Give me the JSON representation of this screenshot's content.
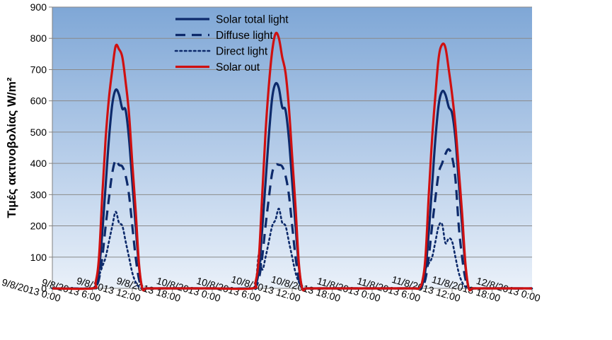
{
  "chart_data": {
    "type": "line",
    "title": "",
    "xlabel": "",
    "ylabel": "Τιμές ακτινοβολίας W/m²",
    "ylim": [
      0,
      900
    ],
    "yticks": [
      0,
      100,
      200,
      300,
      400,
      500,
      600,
      700,
      800,
      900
    ],
    "xlim": [
      0,
      72
    ],
    "xtick_labels": [
      "9/8/2013 0:00",
      "9/8/2013 6:00",
      "9/8/2013 12:00",
      "9/8/2013 18:00",
      "10/8/2013 0:00",
      "10/8/2013 6:00",
      "10/8/2013 12:00",
      "10/8/2013 18:00",
      "11/8/2013 0:00",
      "11/8/2013 6:00",
      "11/8/2013 12:00",
      "11/8/2013 18:00",
      "12/8/2013 0:00"
    ],
    "x_hours_since_9_8_2013_0000": [
      0,
      6,
      6.5,
      7,
      7.5,
      8,
      8.5,
      9,
      9.5,
      10,
      10.5,
      11,
      11.5,
      12,
      12.5,
      13,
      13.5,
      14,
      14.5,
      15,
      15.5,
      16,
      16.5,
      17,
      17.5,
      18,
      24,
      30,
      30.5,
      31,
      31.5,
      32,
      32.5,
      33,
      33.5,
      34,
      34.5,
      35,
      35.5,
      36,
      36.5,
      37,
      37.5,
      38,
      38.5,
      39,
      39.5,
      40,
      40.5,
      41,
      41.5,
      42,
      48,
      54,
      54.5,
      55,
      55.5,
      56,
      56.5,
      57,
      57.5,
      58,
      58.5,
      59,
      59.5,
      60,
      60.5,
      61,
      61.5,
      62,
      62.5,
      63,
      63.5,
      64,
      64.5,
      65,
      65.5,
      66,
      72
    ],
    "grid": true,
    "legend_position": "top-center",
    "background": "gradient blue",
    "series": [
      {
        "name": "Solar total light",
        "color": "#0d2a6b",
        "style": "solid",
        "values": [
          0,
          0,
          10,
          60,
          180,
          330,
          480,
          590,
          635,
          620,
          575,
          570,
          480,
          340,
          200,
          70,
          0,
          0,
          0,
          0,
          0,
          0,
          0,
          0,
          0,
          0,
          0,
          0,
          10,
          60,
          190,
          340,
          490,
          610,
          655,
          640,
          580,
          570,
          480,
          340,
          200,
          70,
          0,
          0,
          0,
          0,
          0,
          0,
          0,
          0,
          0,
          0,
          0,
          0,
          0,
          0,
          10,
          60,
          180,
          330,
          480,
          590,
          630,
          620,
          580,
          560,
          480,
          340,
          200,
          70,
          0,
          0,
          0,
          0,
          0,
          0,
          0,
          0,
          0
        ]
      },
      {
        "name": "Diffuse light",
        "color": "#0d2a6b",
        "style": "dashed",
        "values": [
          0,
          0,
          5,
          30,
          100,
          200,
          290,
          370,
          410,
          395,
          390,
          360,
          300,
          200,
          100,
          30,
          0,
          0,
          0,
          0,
          0,
          0,
          0,
          0,
          0,
          0,
          0,
          0,
          5,
          30,
          100,
          200,
          290,
          370,
          395,
          395,
          390,
          360,
          300,
          200,
          100,
          30,
          0,
          0,
          0,
          0,
          0,
          0,
          0,
          0,
          0,
          0,
          0,
          0,
          0,
          0,
          5,
          30,
          100,
          200,
          290,
          370,
          400,
          430,
          445,
          420,
          350,
          200,
          100,
          30,
          0,
          0,
          0,
          0,
          0,
          0,
          0,
          0,
          0
        ]
      },
      {
        "name": "Direct light",
        "color": "#0d2a6b",
        "style": "dotted",
        "values": [
          0,
          0,
          5,
          40,
          70,
          100,
          150,
          200,
          245,
          210,
          200,
          150,
          100,
          50,
          20,
          5,
          0,
          0,
          0,
          0,
          0,
          0,
          0,
          0,
          0,
          0,
          0,
          0,
          5,
          110,
          60,
          100,
          150,
          200,
          220,
          255,
          210,
          200,
          150,
          100,
          50,
          20,
          0,
          0,
          0,
          0,
          0,
          0,
          0,
          0,
          0,
          0,
          0,
          0,
          0,
          0,
          5,
          60,
          80,
          100,
          150,
          200,
          205,
          145,
          160,
          150,
          100,
          50,
          20,
          5,
          0,
          0,
          0,
          0,
          0,
          0,
          0,
          0,
          0
        ]
      },
      {
        "name": "Solar out",
        "color": "#d01010",
        "style": "solid",
        "values": [
          0,
          0,
          20,
          100,
          300,
          480,
          610,
          700,
          775,
          765,
          740,
          660,
          560,
          400,
          250,
          80,
          0,
          0,
          0,
          0,
          0,
          0,
          0,
          0,
          0,
          0,
          0,
          0,
          20,
          100,
          300,
          500,
          650,
          760,
          815,
          800,
          740,
          690,
          580,
          420,
          260,
          80,
          0,
          0,
          0,
          0,
          0,
          0,
          0,
          0,
          0,
          0,
          0,
          0,
          0,
          0,
          20,
          100,
          300,
          480,
          620,
          740,
          780,
          770,
          700,
          620,
          520,
          380,
          240,
          80,
          0,
          0,
          0,
          0,
          0,
          0,
          0,
          0,
          0
        ]
      }
    ]
  }
}
